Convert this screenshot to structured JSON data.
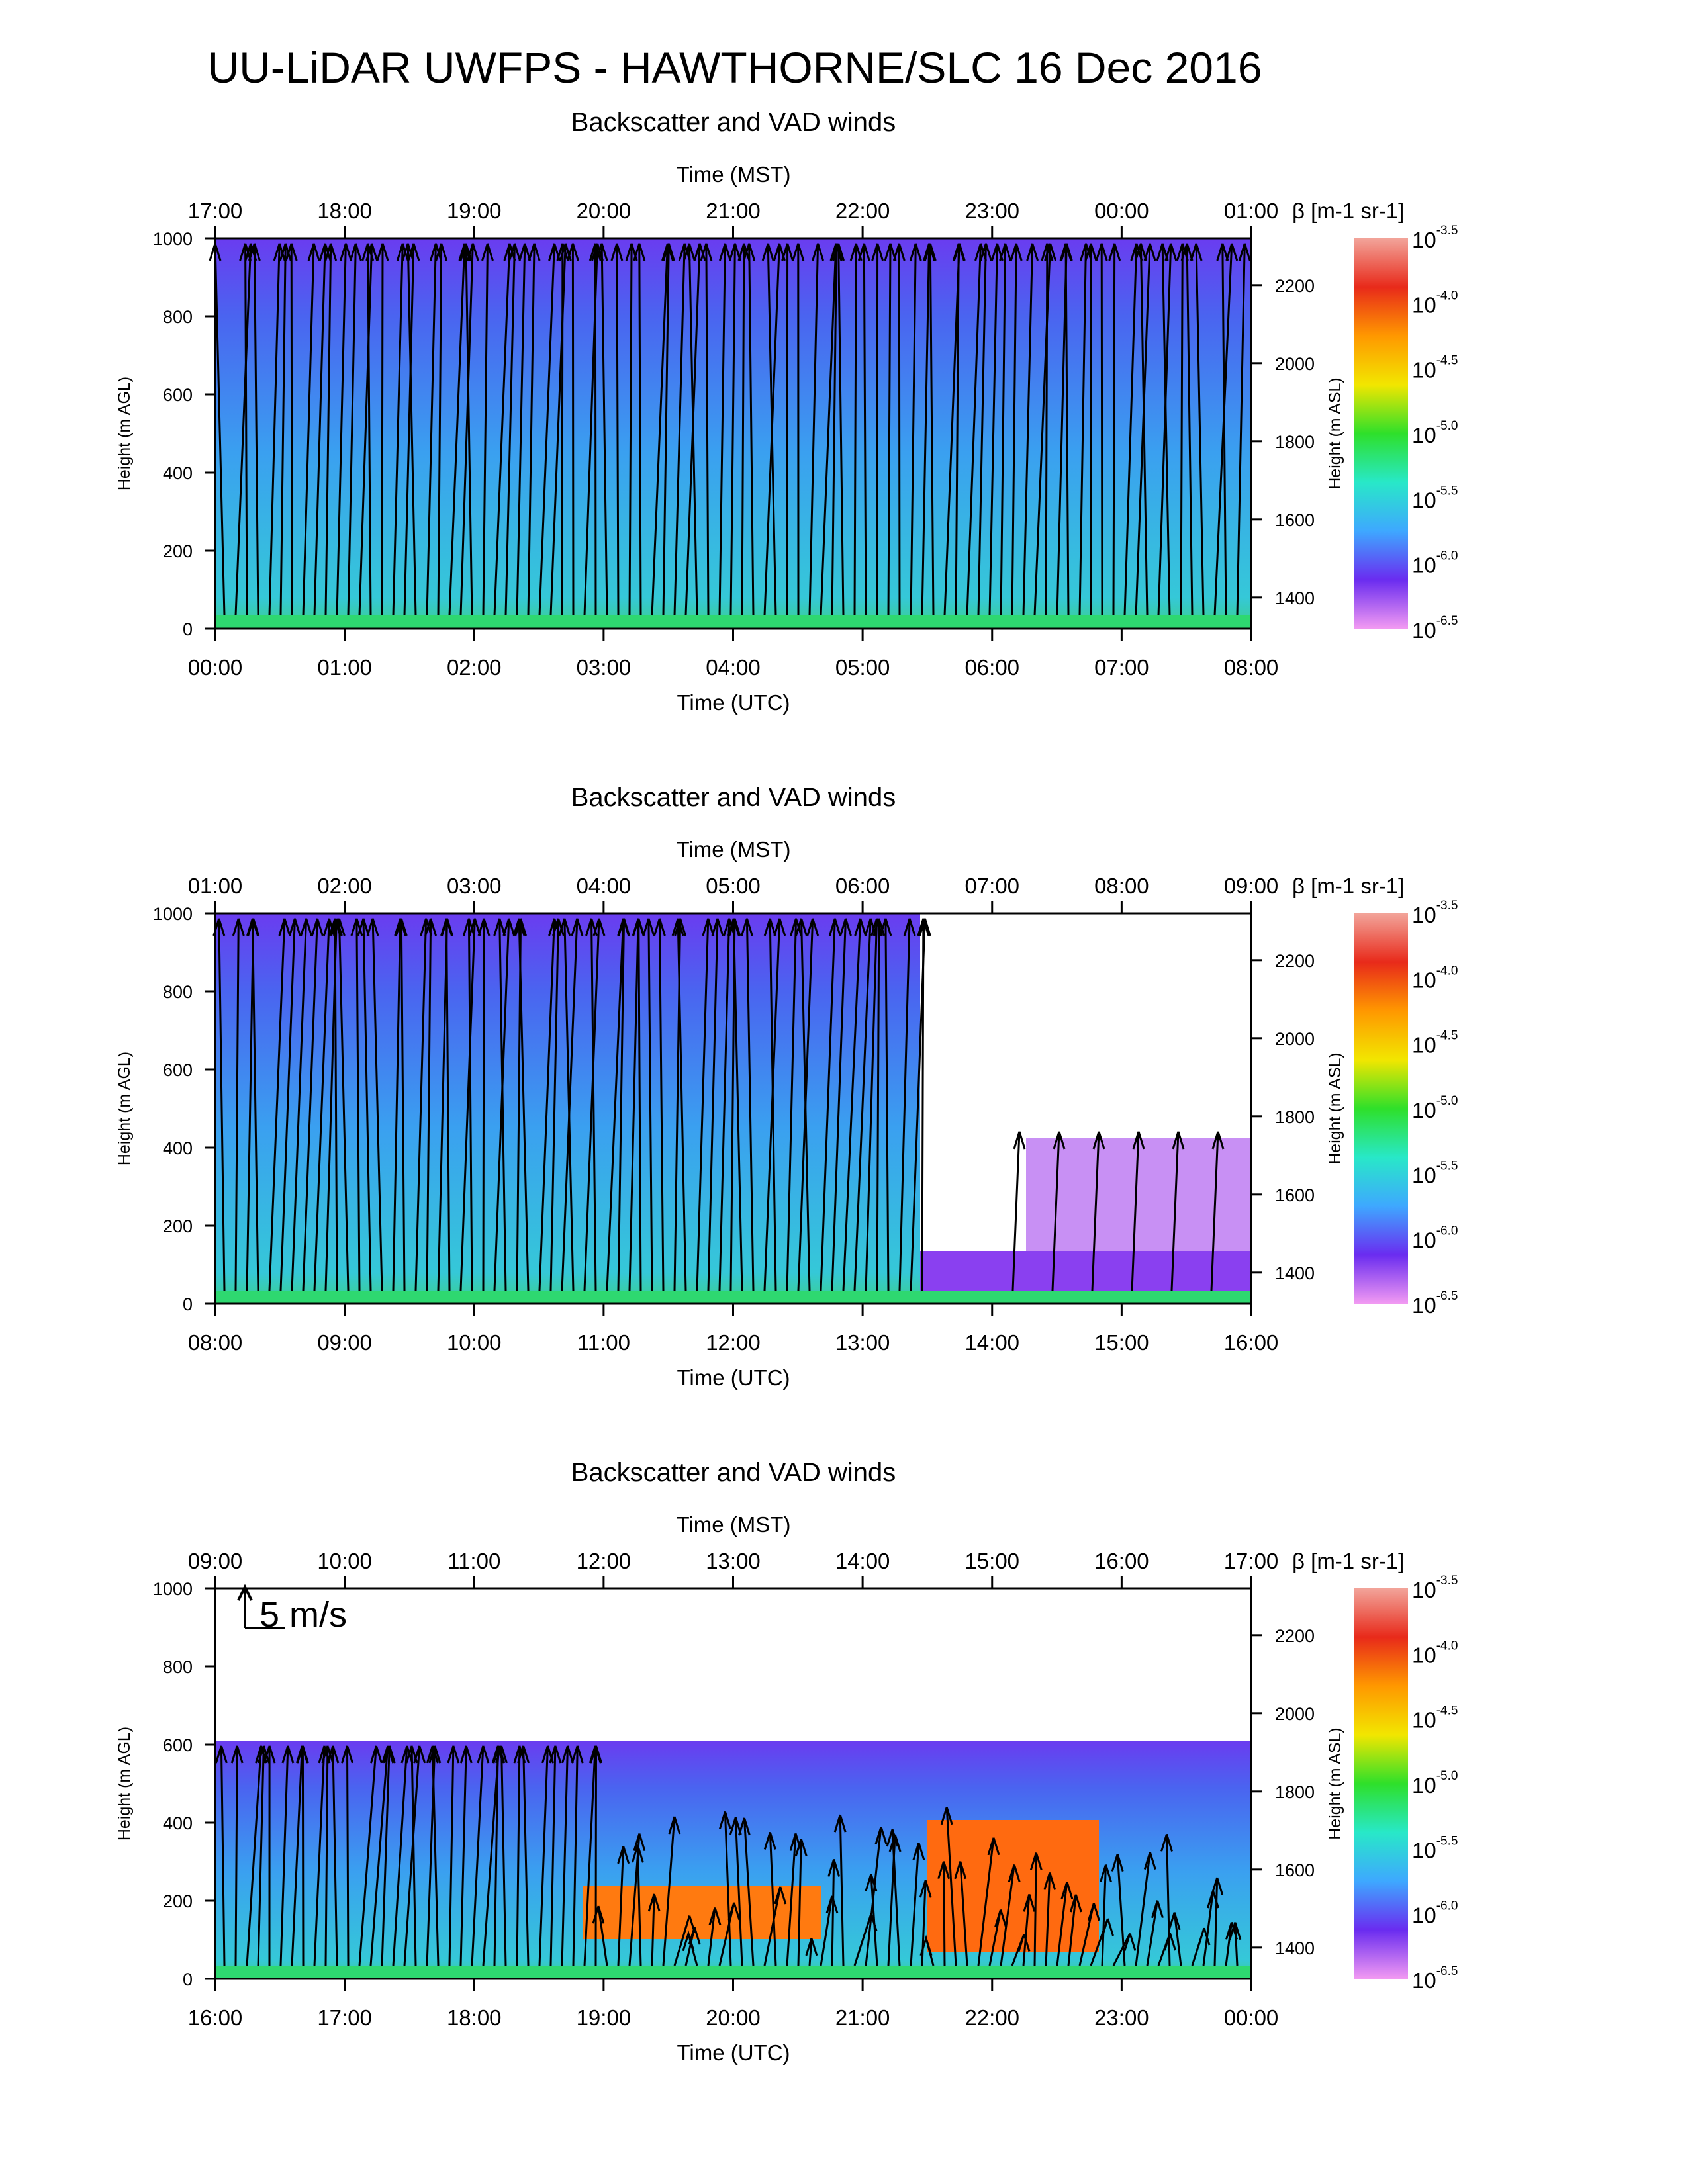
{
  "title": "UU-LiDAR UWFPS - HAWTHORNE/SLC 16 Dec 2016",
  "colorbar": {
    "label": "β [m-1 sr-1]",
    "ticks": [
      {
        "base": "10",
        "exp": "-3.5"
      },
      {
        "base": "10",
        "exp": "-4.0"
      },
      {
        "base": "10",
        "exp": "-4.5"
      },
      {
        "base": "10",
        "exp": "-5.0"
      },
      {
        "base": "10",
        "exp": "-5.5"
      },
      {
        "base": "10",
        "exp": "-6.0"
      },
      {
        "base": "10",
        "exp": "-6.5"
      }
    ],
    "colors": [
      "#f2a49a",
      "#e82a1a",
      "#ff9800",
      "#f2e600",
      "#2ee02a",
      "#28e8c8",
      "#3ea8ff",
      "#6a2cf0",
      "#f29af2"
    ]
  },
  "scale_arrow_label": "5 m/s",
  "chart_data": [
    {
      "type": "heatmap",
      "title": "Backscatter and VAD winds",
      "xlabel_top": "Time (MST)",
      "xlabel": "Time (UTC)",
      "ylabel": "Height (m AGL)",
      "ylabel_right": "Height (m ASL)",
      "ylim": [
        0,
        1000
      ],
      "ylim_right": [
        1320,
        2320
      ],
      "x_ticks_top": [
        "17:00",
        "18:00",
        "19:00",
        "20:00",
        "21:00",
        "22:00",
        "23:00",
        "00:00",
        "01:00"
      ],
      "x_ticks_bottom": [
        "00:00",
        "01:00",
        "02:00",
        "03:00",
        "04:00",
        "05:00",
        "06:00",
        "07:00",
        "08:00"
      ],
      "y_ticks": [
        "0",
        "200",
        "400",
        "600",
        "800",
        "1000"
      ],
      "y_ticks_right": [
        "1400",
        "1600",
        "1800",
        "2000",
        "2200"
      ]
    },
    {
      "type": "heatmap",
      "title": "Backscatter and VAD winds",
      "xlabel_top": "Time (MST)",
      "xlabel": "Time (UTC)",
      "ylabel": "Height (m AGL)",
      "ylabel_right": "Height (m ASL)",
      "ylim": [
        0,
        1000
      ],
      "ylim_right": [
        1320,
        2320
      ],
      "x_ticks_top": [
        "01:00",
        "02:00",
        "03:00",
        "04:00",
        "05:00",
        "06:00",
        "07:00",
        "08:00",
        "09:00"
      ],
      "x_ticks_bottom": [
        "08:00",
        "09:00",
        "10:00",
        "11:00",
        "12:00",
        "13:00",
        "14:00",
        "15:00",
        "16:00"
      ],
      "y_ticks": [
        "0",
        "200",
        "400",
        "600",
        "800",
        "1000"
      ],
      "y_ticks_right": [
        "1400",
        "1600",
        "1800",
        "2000",
        "2200"
      ]
    },
    {
      "type": "heatmap",
      "title": "Backscatter and VAD winds",
      "xlabel_top": "Time (MST)",
      "xlabel": "Time (UTC)",
      "ylabel": "Height (m AGL)",
      "ylabel_right": "Height (m ASL)",
      "ylim": [
        0,
        1000
      ],
      "ylim_right": [
        1320,
        2320
      ],
      "x_ticks_top": [
        "09:00",
        "10:00",
        "11:00",
        "12:00",
        "13:00",
        "14:00",
        "15:00",
        "16:00",
        "17:00"
      ],
      "x_ticks_bottom": [
        "16:00",
        "17:00",
        "18:00",
        "19:00",
        "20:00",
        "21:00",
        "22:00",
        "23:00",
        "00:00"
      ],
      "y_ticks": [
        "0",
        "200",
        "400",
        "600",
        "800",
        "1000"
      ],
      "y_ticks_right": [
        "1400",
        "1600",
        "1800",
        "2000",
        "2200"
      ]
    }
  ]
}
